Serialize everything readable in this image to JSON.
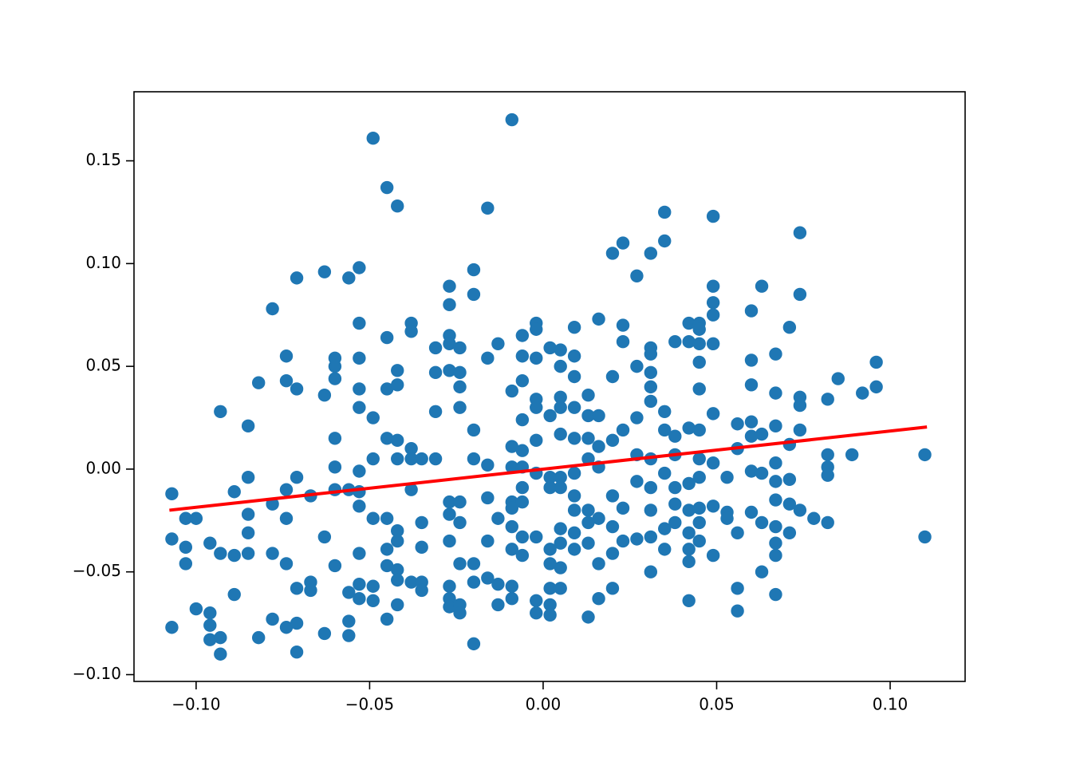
{
  "chart_data": {
    "type": "scatter",
    "xlim": [
      -0.1179,
      0.1216
    ],
    "ylim": [
      -0.1033,
      0.1836
    ],
    "xticks": [
      {
        "value": -0.1,
        "label": "−0.10"
      },
      {
        "value": -0.05,
        "label": "−0.05"
      },
      {
        "value": 0,
        "label": "0.00"
      },
      {
        "value": 0.05,
        "label": "0.05"
      },
      {
        "value": 0.1,
        "label": "0.10"
      }
    ],
    "yticks": [
      {
        "value": -0.1,
        "label": "−0.10"
      },
      {
        "value": -0.05,
        "label": "−0.05"
      },
      {
        "value": 0,
        "label": "0.00"
      },
      {
        "value": 0.05,
        "label": "0.05"
      },
      {
        "value": 0.1,
        "label": "0.10"
      },
      {
        "value": 0.15,
        "label": "0.15"
      }
    ],
    "grid": false,
    "series": [
      {
        "type": "scatter",
        "color": "#1f77b4",
        "x": [
          -0.107,
          -0.107,
          -0.107,
          -0.103,
          -0.103,
          -0.103,
          -0.1,
          -0.1,
          -0.096,
          -0.096,
          -0.096,
          -0.096,
          -0.093,
          -0.093,
          -0.093,
          -0.093,
          -0.089,
          -0.089,
          -0.089,
          -0.085,
          -0.085,
          -0.085,
          -0.085,
          -0.085,
          -0.082,
          -0.082,
          -0.078,
          -0.078,
          -0.078,
          -0.078,
          -0.074,
          -0.074,
          -0.074,
          -0.074,
          -0.074,
          -0.074,
          -0.071,
          -0.071,
          -0.071,
          -0.071,
          -0.071,
          -0.071,
          -0.067,
          -0.067,
          -0.067,
          -0.063,
          -0.063,
          -0.063,
          -0.063,
          -0.06,
          -0.06,
          -0.06,
          -0.06,
          -0.06,
          -0.06,
          -0.06,
          -0.056,
          -0.056,
          -0.056,
          -0.056,
          -0.056,
          -0.053,
          -0.053,
          -0.053,
          -0.053,
          -0.053,
          -0.053,
          -0.053,
          -0.053,
          -0.053,
          -0.053,
          -0.053,
          -0.049,
          -0.049,
          -0.049,
          -0.049,
          -0.049,
          -0.049,
          -0.045,
          -0.045,
          -0.045,
          -0.045,
          -0.045,
          -0.045,
          -0.045,
          -0.045,
          -0.042,
          -0.042,
          -0.042,
          -0.042,
          -0.042,
          -0.042,
          -0.042,
          -0.042,
          -0.042,
          -0.042,
          -0.038,
          -0.038,
          -0.038,
          -0.038,
          -0.038,
          -0.038,
          -0.035,
          -0.035,
          -0.035,
          -0.035,
          -0.035,
          -0.031,
          -0.031,
          -0.031,
          -0.031,
          -0.027,
          -0.027,
          -0.027,
          -0.027,
          -0.027,
          -0.027,
          -0.027,
          -0.027,
          -0.027,
          -0.027,
          -0.027,
          -0.024,
          -0.024,
          -0.024,
          -0.024,
          -0.024,
          -0.024,
          -0.024,
          -0.024,
          -0.024,
          -0.02,
          -0.02,
          -0.02,
          -0.02,
          -0.02,
          -0.02,
          -0.02,
          -0.016,
          -0.016,
          -0.016,
          -0.016,
          -0.016,
          -0.016,
          -0.013,
          -0.013,
          -0.013,
          -0.013,
          -0.009,
          -0.009,
          -0.009,
          -0.009,
          -0.009,
          -0.009,
          -0.009,
          -0.009,
          -0.009,
          -0.009,
          -0.006,
          -0.006,
          -0.006,
          -0.006,
          -0.006,
          -0.006,
          -0.006,
          -0.006,
          -0.006,
          -0.006,
          -0.002,
          -0.002,
          -0.002,
          -0.002,
          -0.002,
          -0.002,
          -0.002,
          -0.002,
          -0.002,
          -0.002,
          0.002,
          0.002,
          0.002,
          0.002,
          0.002,
          0.002,
          0.002,
          0.002,
          0.002,
          0.005,
          0.005,
          0.005,
          0.005,
          0.005,
          0.005,
          0.005,
          0.005,
          0.005,
          0.005,
          0.005,
          0.009,
          0.009,
          0.009,
          0.009,
          0.009,
          0.009,
          0.009,
          0.009,
          0.009,
          0.009,
          0.013,
          0.013,
          0.013,
          0.013,
          0.013,
          0.013,
          0.013,
          0.013,
          0.016,
          0.016,
          0.016,
          0.016,
          0.016,
          0.016,
          0.016,
          0.02,
          0.02,
          0.02,
          0.02,
          0.02,
          0.02,
          0.02,
          0.023,
          0.023,
          0.023,
          0.023,
          0.023,
          0.023,
          0.027,
          0.027,
          0.027,
          0.027,
          0.027,
          0.027,
          0.031,
          0.031,
          0.031,
          0.031,
          0.031,
          0.031,
          0.031,
          0.031,
          0.031,
          0.031,
          0.031,
          0.035,
          0.035,
          0.035,
          0.035,
          0.035,
          0.035,
          0.035,
          0.038,
          0.038,
          0.038,
          0.038,
          0.038,
          0.038,
          0.042,
          0.042,
          0.042,
          0.042,
          0.042,
          0.042,
          0.042,
          0.042,
          0.042,
          0.045,
          0.045,
          0.045,
          0.045,
          0.045,
          0.045,
          0.045,
          0.045,
          0.045,
          0.045,
          0.045,
          0.049,
          0.049,
          0.049,
          0.049,
          0.049,
          0.049,
          0.049,
          0.049,
          0.049,
          0.053,
          0.053,
          0.053,
          0.056,
          0.056,
          0.056,
          0.056,
          0.056,
          0.06,
          0.06,
          0.06,
          0.06,
          0.06,
          0.06,
          0.06,
          0.063,
          0.063,
          0.063,
          0.063,
          0.063,
          0.067,
          0.067,
          0.067,
          0.067,
          0.067,
          0.067,
          0.067,
          0.067,
          0.067,
          0.067,
          0.071,
          0.071,
          0.071,
          0.071,
          0.071,
          0.074,
          0.074,
          0.074,
          0.074,
          0.074,
          0.074,
          0.078,
          0.082,
          0.082,
          0.082,
          0.082,
          0.082,
          0.085,
          0.089,
          0.092,
          0.096,
          0.096,
          0.11,
          0.11
        ],
        "values": [
          -0.012,
          -0.034,
          -0.077,
          -0.024,
          -0.038,
          -0.046,
          -0.024,
          -0.068,
          -0.036,
          -0.07,
          -0.076,
          -0.083,
          0.028,
          -0.041,
          -0.082,
          -0.09,
          -0.011,
          -0.042,
          -0.061,
          0.021,
          -0.004,
          -0.022,
          -0.031,
          -0.041,
          0.042,
          -0.082,
          0.078,
          -0.017,
          -0.041,
          -0.073,
          0.055,
          0.043,
          -0.01,
          -0.024,
          -0.046,
          -0.077,
          0.093,
          0.039,
          -0.004,
          -0.058,
          -0.075,
          -0.089,
          -0.013,
          -0.055,
          -0.059,
          0.096,
          0.036,
          -0.033,
          -0.08,
          0.015,
          0.054,
          0.05,
          0.044,
          0.001,
          -0.01,
          -0.047,
          0.093,
          -0.01,
          -0.06,
          -0.074,
          -0.081,
          0.098,
          0.071,
          0.054,
          0.039,
          0.03,
          -0.001,
          -0.011,
          -0.018,
          -0.041,
          -0.056,
          -0.063,
          0.161,
          0.025,
          0.005,
          -0.024,
          -0.057,
          -0.064,
          0.137,
          0.064,
          0.039,
          0.015,
          -0.024,
          -0.039,
          -0.047,
          -0.073,
          0.128,
          0.048,
          0.041,
          0.014,
          0.005,
          -0.03,
          -0.035,
          -0.049,
          -0.054,
          -0.066,
          0.071,
          0.067,
          0.01,
          0.005,
          -0.01,
          -0.055,
          0.005,
          -0.026,
          -0.038,
          -0.055,
          -0.059,
          0.059,
          0.047,
          0.028,
          0.005,
          0.089,
          0.08,
          0.065,
          0.061,
          0.048,
          -0.016,
          -0.022,
          -0.035,
          -0.057,
          -0.063,
          -0.067,
          0.059,
          0.047,
          0.04,
          0.03,
          -0.016,
          -0.026,
          -0.046,
          -0.066,
          -0.07,
          0.097,
          0.085,
          0.019,
          0.005,
          -0.046,
          -0.055,
          -0.085,
          0.127,
          0.054,
          0.002,
          -0.014,
          -0.035,
          -0.053,
          0.061,
          -0.024,
          -0.056,
          -0.066,
          0.17,
          0.038,
          0.011,
          0.001,
          -0.016,
          -0.019,
          -0.028,
          -0.039,
          -0.057,
          -0.063,
          0.065,
          0.055,
          0.043,
          0.024,
          0.009,
          0.001,
          -0.009,
          -0.016,
          -0.033,
          -0.042,
          0.071,
          0.068,
          0.054,
          0.034,
          0.03,
          0.014,
          -0.002,
          -0.033,
          -0.064,
          -0.07,
          0.059,
          0.026,
          -0.004,
          -0.009,
          -0.039,
          -0.046,
          -0.058,
          -0.066,
          -0.071,
          0.058,
          0.05,
          0.035,
          0.03,
          0.017,
          -0.004,
          -0.009,
          -0.029,
          -0.036,
          -0.048,
          -0.058,
          0.069,
          0.055,
          0.045,
          0.03,
          0.015,
          -0.002,
          -0.013,
          -0.02,
          -0.031,
          -0.039,
          0.036,
          0.026,
          0.015,
          0.005,
          -0.02,
          -0.026,
          -0.036,
          -0.072,
          0.073,
          0.026,
          0.011,
          0.001,
          -0.024,
          -0.046,
          -0.063,
          0.105,
          0.045,
          0.014,
          -0.013,
          -0.028,
          -0.041,
          -0.058,
          0.11,
          0.07,
          0.062,
          0.019,
          -0.019,
          -0.035,
          0.094,
          0.05,
          0.025,
          0.007,
          -0.006,
          -0.034,
          0.105,
          0.059,
          0.056,
          0.047,
          0.04,
          0.033,
          0.005,
          -0.009,
          -0.02,
          -0.033,
          -0.05,
          0.125,
          0.111,
          0.028,
          0.019,
          -0.002,
          -0.029,
          -0.039,
          0.062,
          0.016,
          0.007,
          -0.009,
          -0.017,
          -0.026,
          0.071,
          0.062,
          0.02,
          -0.007,
          -0.02,
          -0.031,
          -0.039,
          -0.045,
          -0.064,
          0.071,
          0.068,
          0.061,
          0.052,
          0.039,
          0.019,
          0.005,
          -0.004,
          -0.019,
          -0.026,
          -0.035,
          0.123,
          0.089,
          0.081,
          0.075,
          0.061,
          0.027,
          0.003,
          -0.018,
          -0.042,
          -0.004,
          -0.021,
          -0.024,
          0.022,
          0.01,
          -0.031,
          -0.058,
          -0.069,
          0.077,
          0.053,
          0.041,
          0.023,
          0.016,
          -0.001,
          -0.021,
          0.089,
          0.017,
          -0.002,
          -0.026,
          -0.05,
          0.056,
          0.037,
          0.021,
          0.003,
          -0.006,
          -0.015,
          -0.028,
          -0.036,
          -0.042,
          -0.061,
          0.069,
          0.012,
          -0.005,
          -0.017,
          -0.031,
          0.115,
          0.085,
          0.035,
          0.031,
          0.019,
          -0.02,
          -0.024,
          0.034,
          0.007,
          0.001,
          -0.003,
          -0.026,
          0.044,
          0.007,
          0.037,
          0.052,
          0.04,
          0.007,
          -0.033
        ]
      },
      {
        "type": "line",
        "color": "#ff0000",
        "x": [
          -0.1077,
          0.1106
        ],
        "values": [
          -0.02,
          0.0205
        ]
      }
    ]
  }
}
